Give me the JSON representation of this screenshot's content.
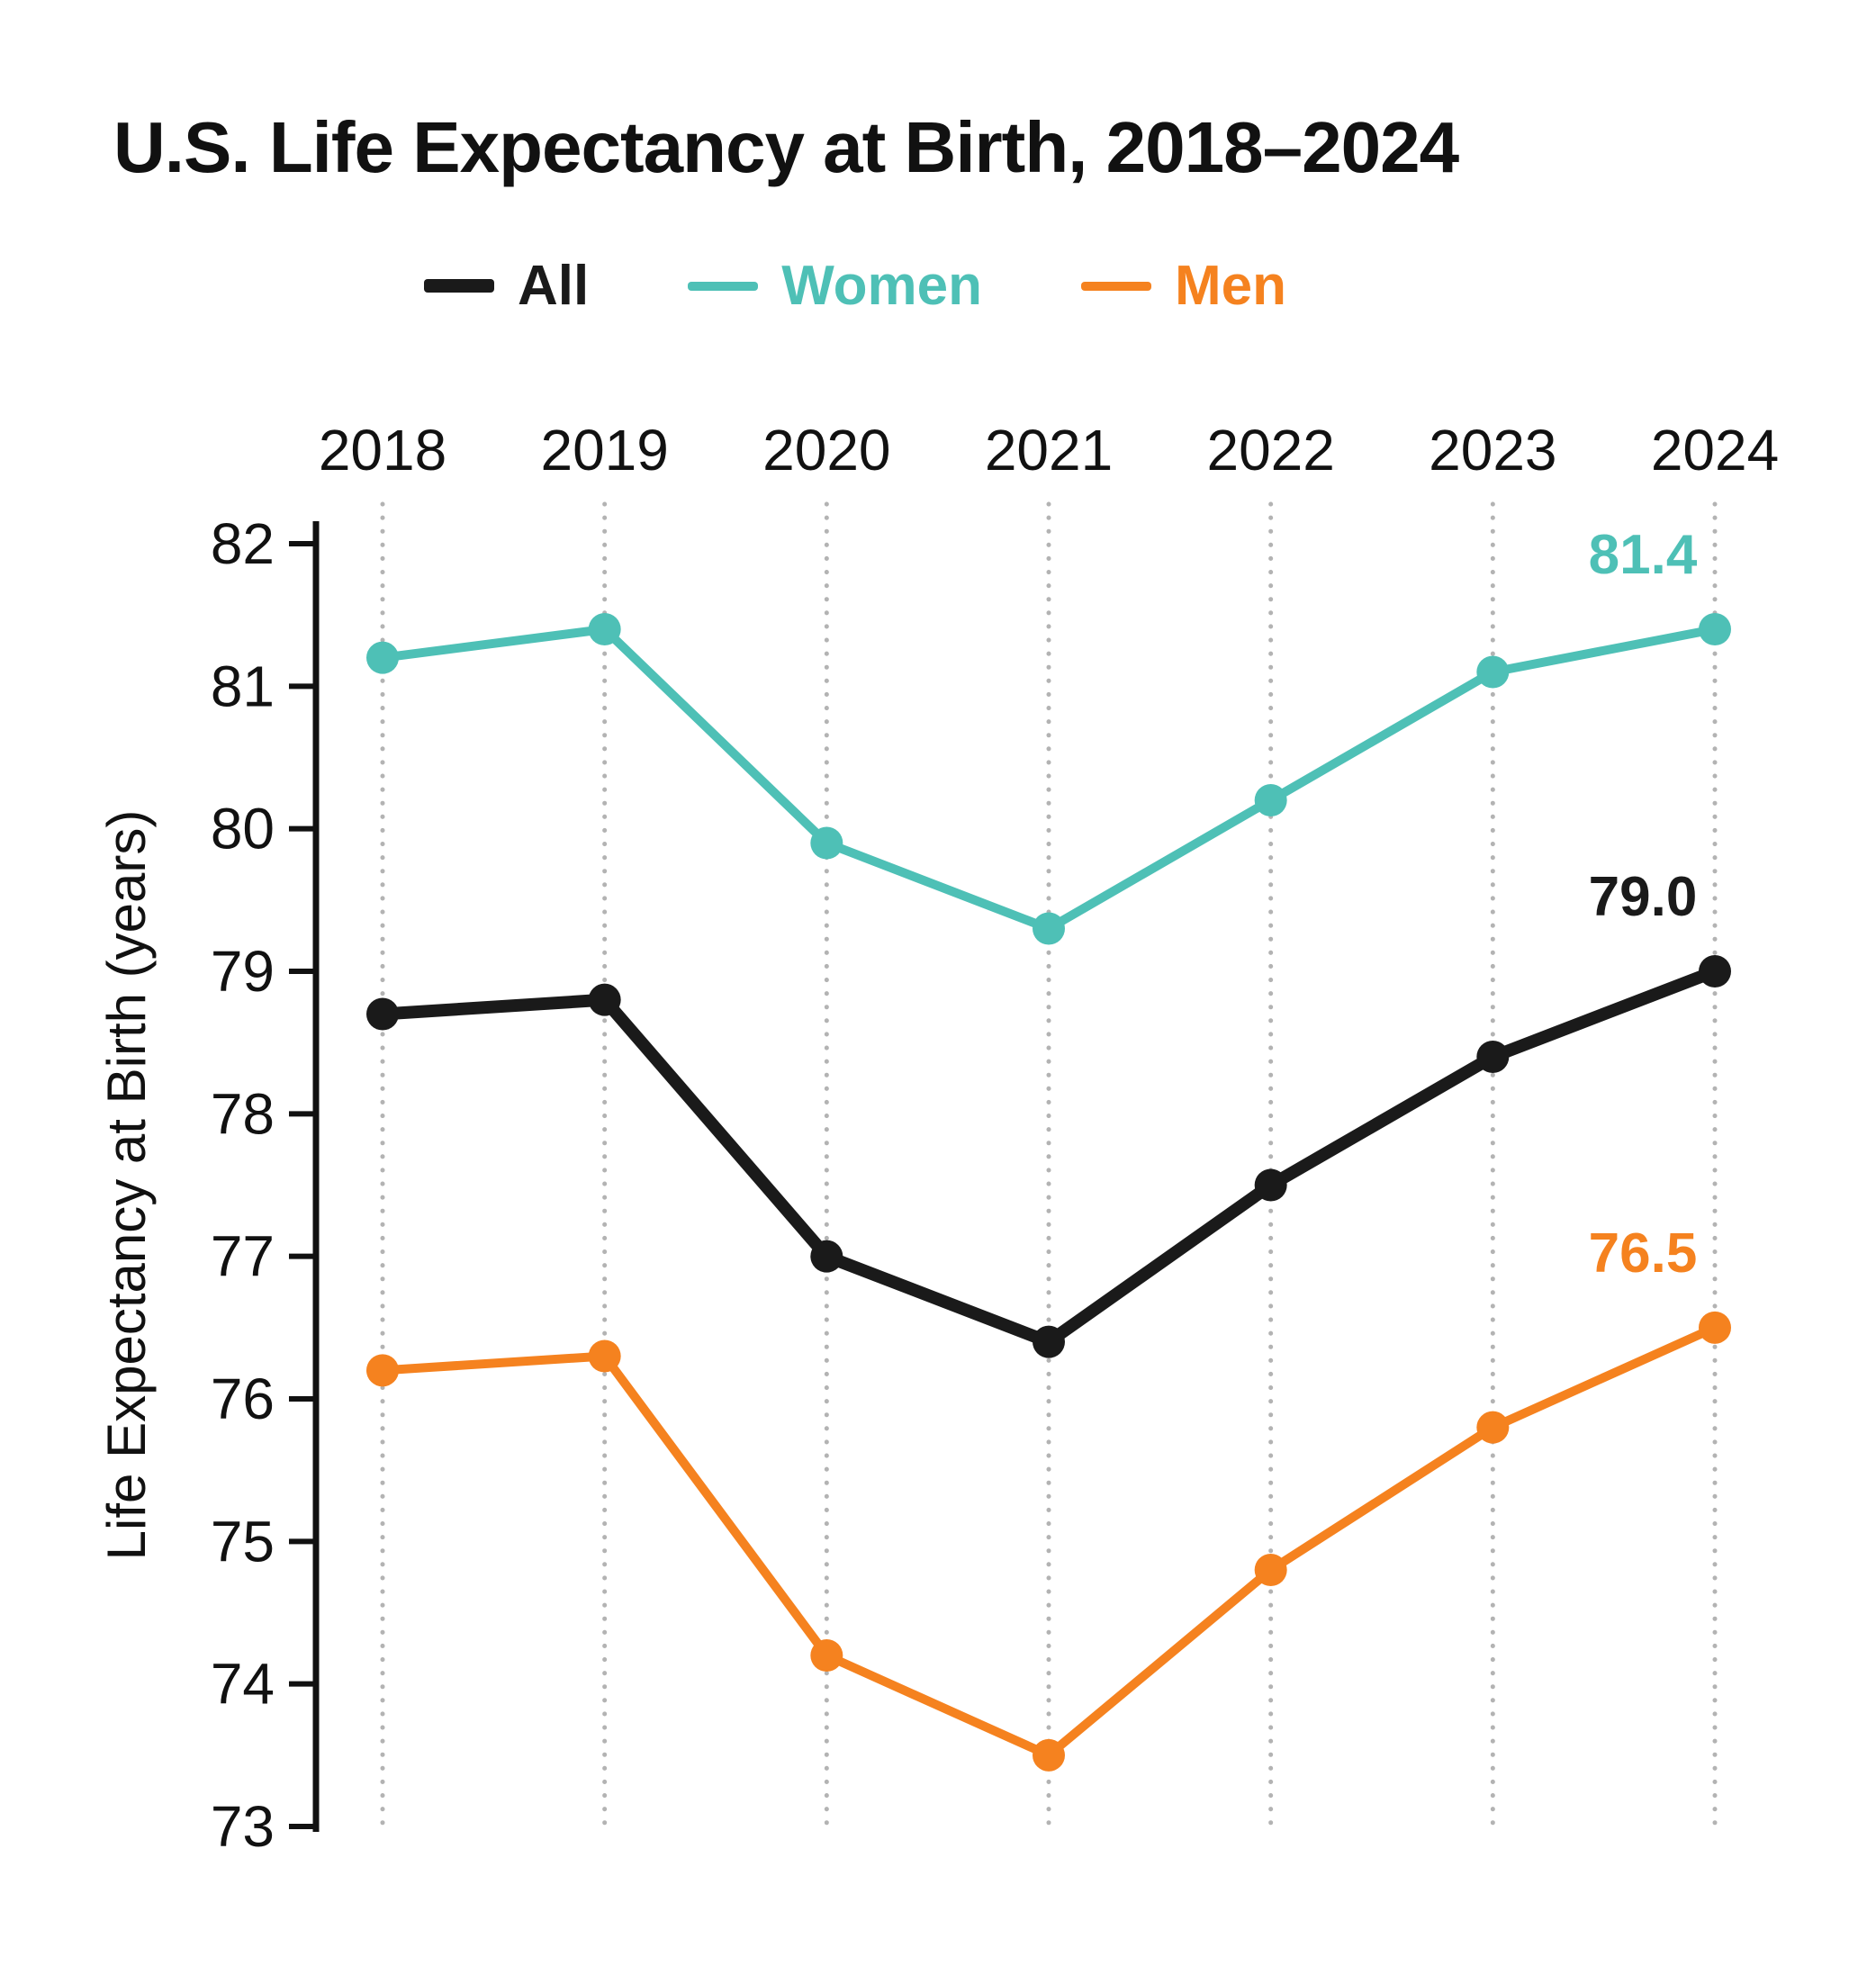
{
  "chart_data": {
    "type": "line",
    "title": "U.S. Life Expectancy at Birth, 2018–2024",
    "ylabel": "Life Expectancy at Birth (years)",
    "xlabel": "",
    "x": [
      2018,
      2019,
      2020,
      2021,
      2022,
      2023,
      2024
    ],
    "ylim": [
      73,
      82
    ],
    "yticks": [
      73,
      74,
      75,
      76,
      77,
      78,
      79,
      80,
      81,
      82
    ],
    "grid": "vertical-dotted",
    "legend_position": "top",
    "series": [
      {
        "name": "All",
        "color": "#1a1a1a",
        "values": [
          78.7,
          78.8,
          77.0,
          76.4,
          77.5,
          78.4,
          79.0
        ],
        "end_label": "79.0"
      },
      {
        "name": "Women",
        "color": "#4ec0b6",
        "values": [
          81.2,
          81.4,
          79.9,
          79.3,
          80.2,
          81.1,
          81.4
        ],
        "end_label": "81.4"
      },
      {
        "name": "Men",
        "color": "#f5821f",
        "values": [
          76.2,
          76.3,
          74.2,
          73.5,
          74.8,
          75.8,
          76.5
        ],
        "end_label": "76.5"
      }
    ]
  }
}
